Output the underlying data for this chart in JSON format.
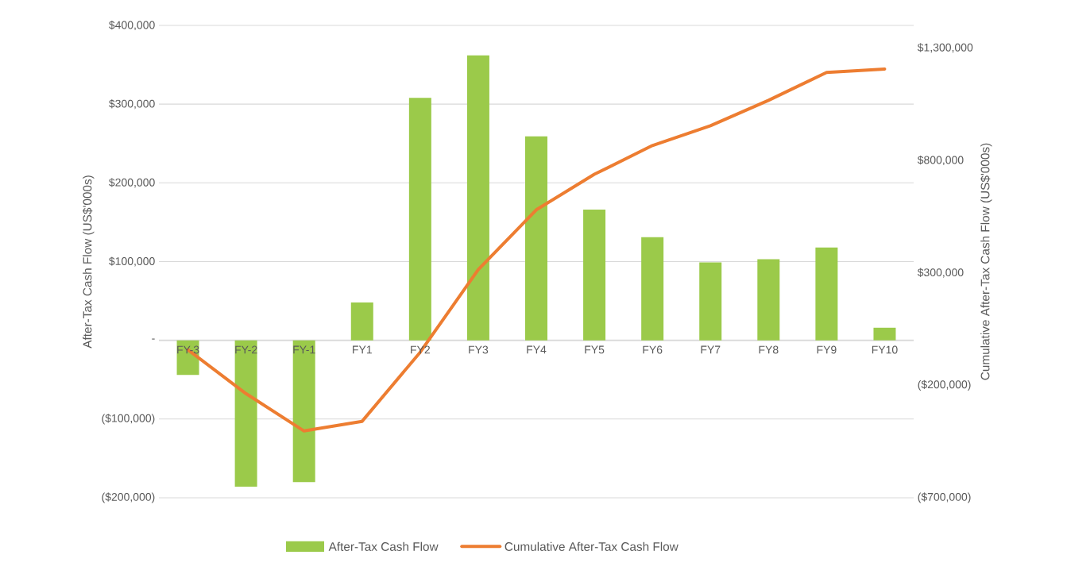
{
  "chart_data": {
    "type": "bar",
    "categories": [
      "FY-3",
      "FY-2",
      "FY-1",
      "FY1",
      "FY2",
      "FY3",
      "FY4",
      "FY5",
      "FY6",
      "FY7",
      "FY8",
      "FY9",
      "FY10"
    ],
    "series": [
      {
        "name": "After-Tax Cash Flow",
        "color": "#9bca4a",
        "values": [
          -44000,
          -186000,
          -180000,
          48000,
          308000,
          362000,
          259000,
          166000,
          131000,
          99000,
          103000,
          118000,
          16000
        ]
      },
      {
        "name": "Cumulative After-Tax Cash Flow",
        "type": "line",
        "axis": "y2",
        "color": "#ed7d31",
        "values": [
          -42000,
          -237000,
          -403000,
          -360000,
          -53000,
          314000,
          580000,
          738000,
          866000,
          954000,
          1067000,
          1191000,
          1206000
        ]
      }
    ],
    "ylabel": "After-Tax Cash Flow (US$'000s)",
    "y2label": "Cumulative After-Tax Cash Flow (US$'000s)",
    "ylim": [
      -200000,
      400000
    ],
    "yticks": [
      {
        "value": -200000,
        "label": "($200,000)"
      },
      {
        "value": -100000,
        "label": "($100,000)"
      },
      {
        "value": 0,
        "label": "-"
      },
      {
        "value": 100000,
        "label": "$100,000"
      },
      {
        "value": 200000,
        "label": "$200,000"
      },
      {
        "value": 300000,
        "label": "$300,000"
      },
      {
        "value": 400000,
        "label": "$400,000"
      }
    ],
    "y2lim": [
      -700000,
      1400000
    ],
    "y2ticks": [
      {
        "value": -700000,
        "label": "($700,000)"
      },
      {
        "value": -200000,
        "label": "($200,000)"
      },
      {
        "value": 300000,
        "label": "$300,000"
      },
      {
        "value": 800000,
        "label": "$800,000"
      },
      {
        "value": 1300000,
        "label": "$1,300,000"
      }
    ],
    "grid": "y",
    "legend": "bottom"
  }
}
